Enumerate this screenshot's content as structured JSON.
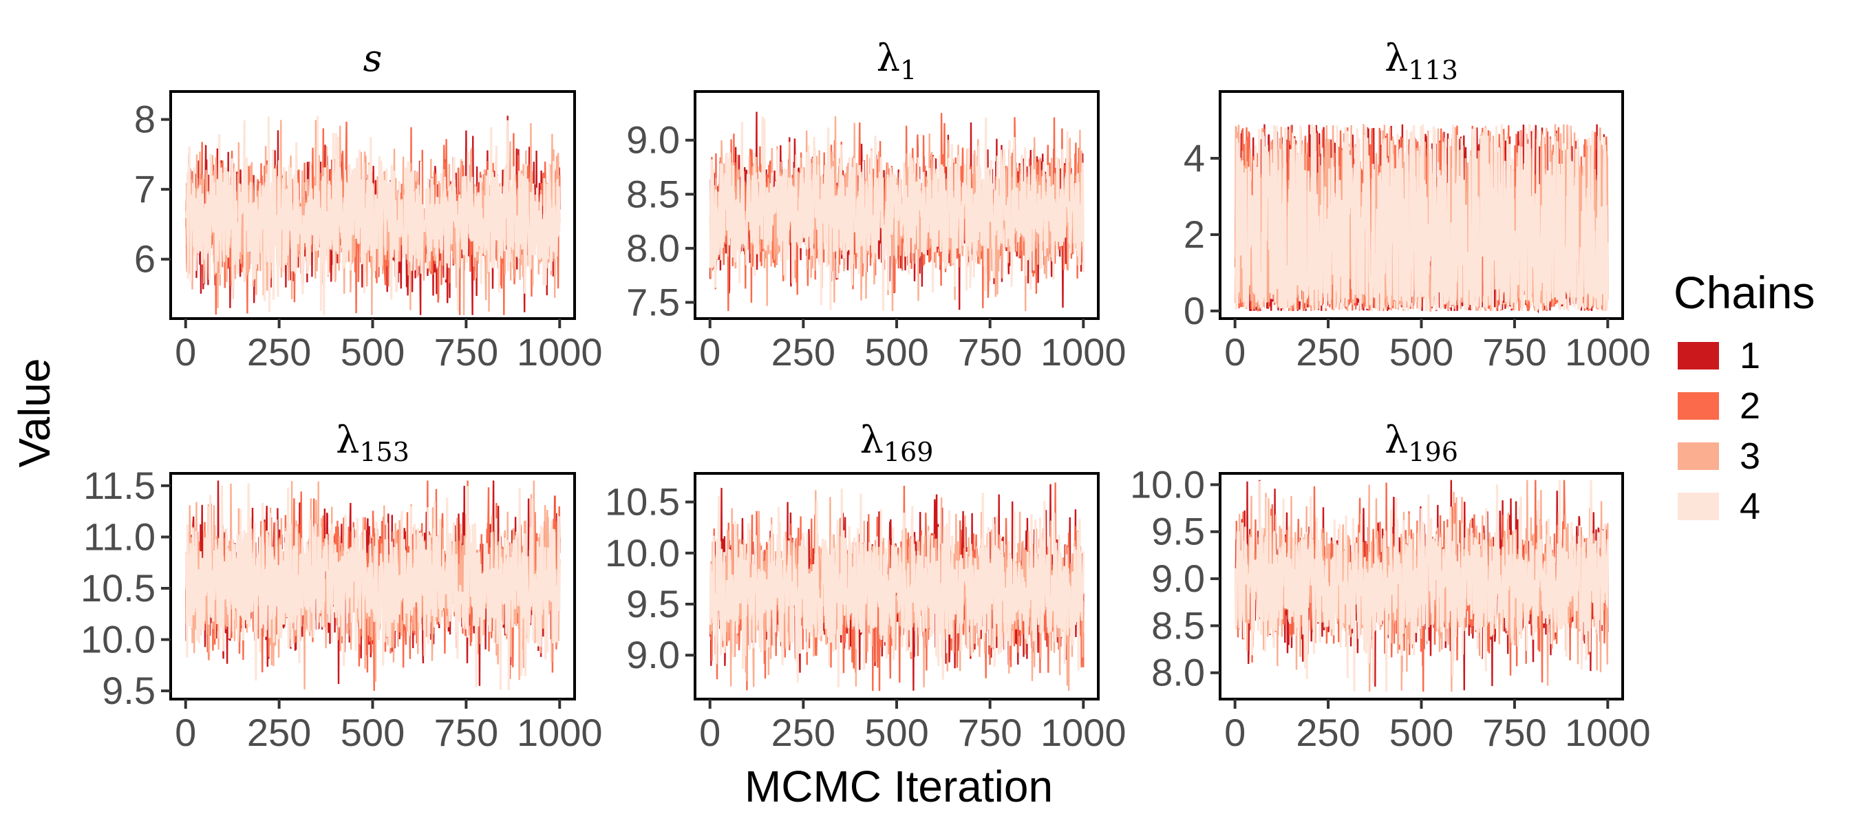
{
  "chart_data": {
    "type": "line",
    "xlabel": "MCMC Iteration",
    "ylabel": "Value",
    "legend": {
      "title": "Chains",
      "placement": "right",
      "entries": [
        {
          "label": "1",
          "color": "#cb181d"
        },
        {
          "label": "2",
          "color": "#fb6a4a"
        },
        {
          "label": "3",
          "color": "#fcae91"
        },
        {
          "label": "4",
          "color": "#fee5d9"
        }
      ]
    },
    "xlim": [
      -40,
      1040
    ],
    "x_ticks": [
      0,
      250,
      500,
      750,
      1000
    ],
    "x_tick_labels": [
      "0",
      "250",
      "500",
      "750",
      "1000"
    ],
    "iterations": 1000,
    "panels": [
      {
        "id": "s",
        "title_main": "s",
        "title_sub": "",
        "title_italic": true,
        "ylim": [
          5.15,
          8.4
        ],
        "y_ticks": [
          6,
          7,
          8
        ],
        "y_tick_labels": [
          "6",
          "7",
          "8"
        ],
        "center": 6.55,
        "spread": 0.42,
        "low": 5.2,
        "high": 8.3
      },
      {
        "id": "lambda-1",
        "title_main": "λ",
        "title_sub": "1",
        "title_italic": false,
        "ylim": [
          7.35,
          9.45
        ],
        "y_ticks": [
          7.5,
          8.0,
          8.5,
          9.0
        ],
        "y_tick_labels": [
          "7.5",
          "8.0",
          "8.5",
          "9.0"
        ],
        "center": 8.32,
        "spread": 0.27,
        "low": 7.42,
        "high": 9.38
      },
      {
        "id": "lambda-113",
        "title_main": "λ",
        "title_sub": "113",
        "title_italic": false,
        "ylim": [
          -0.2,
          5.75
        ],
        "y_ticks": [
          0,
          2,
          4
        ],
        "y_tick_labels": [
          "0",
          "2",
          "4"
        ],
        "center": 2.4,
        "spread": 1.6,
        "low": 0.0,
        "high": 5.6
      },
      {
        "id": "lambda-153",
        "title_main": "λ",
        "title_sub": "153",
        "title_italic": false,
        "ylim": [
          9.42,
          11.62
        ],
        "y_ticks": [
          9.5,
          10.0,
          10.5,
          11.0,
          11.5
        ],
        "y_tick_labels": [
          "9.5",
          "10.0",
          "10.5",
          "11.0",
          "11.5"
        ],
        "center": 10.55,
        "spread": 0.3,
        "low": 9.5,
        "high": 11.55
      },
      {
        "id": "lambda-169",
        "title_main": "λ",
        "title_sub": "169",
        "title_italic": false,
        "ylim": [
          8.57,
          10.78
        ],
        "y_ticks": [
          9.0,
          9.5,
          10.0,
          10.5
        ],
        "y_tick_labels": [
          "9.0",
          "9.5",
          "10.0",
          "10.5"
        ],
        "center": 9.62,
        "spread": 0.3,
        "low": 8.65,
        "high": 10.72
      },
      {
        "id": "lambda-196",
        "title_main": "λ",
        "title_sub": "196",
        "title_italic": false,
        "ylim": [
          7.72,
          10.12
        ],
        "y_ticks": [
          8.0,
          8.5,
          9.0,
          9.5,
          10.0
        ],
        "y_tick_labels": [
          "8.0",
          "8.5",
          "9.0",
          "9.5",
          "10.0"
        ],
        "center": 8.95,
        "spread": 0.33,
        "low": 7.8,
        "high": 10.05
      }
    ]
  }
}
